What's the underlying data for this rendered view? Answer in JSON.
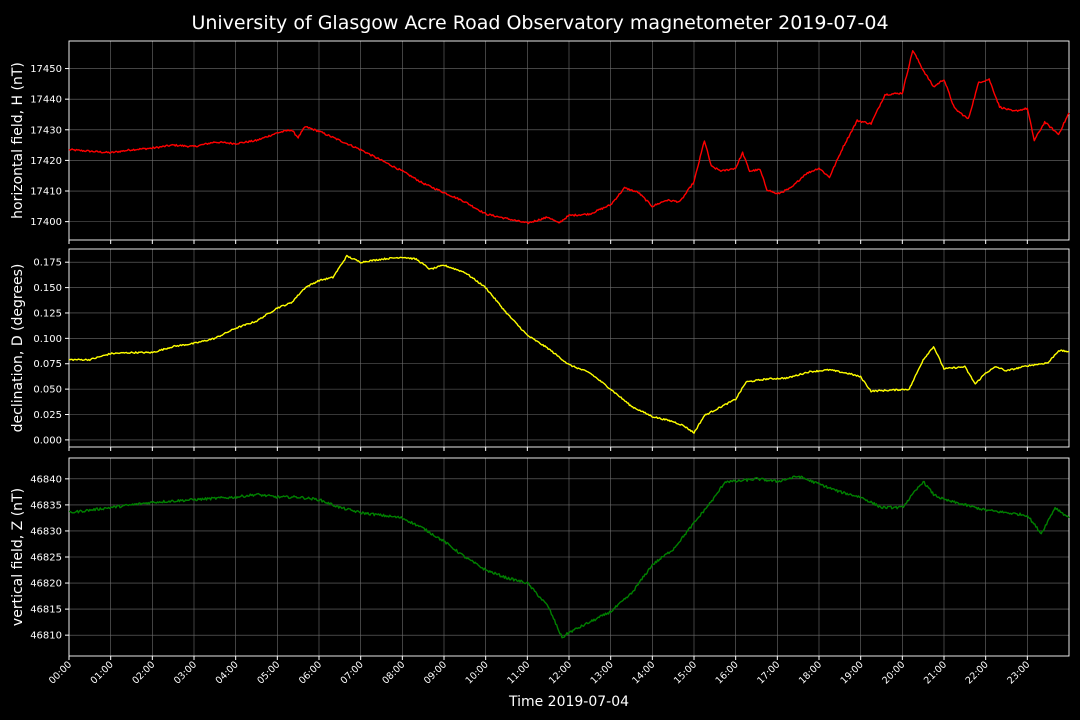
{
  "chart_data": {
    "type": "line",
    "title": "University of Glasgow Acre Road Observatory magnetometer 2019-07-04",
    "xlabel": "Time 2019-07-04",
    "x_ticks": [
      "00:00",
      "01:00",
      "02:00",
      "03:00",
      "04:00",
      "05:00",
      "06:00",
      "07:00",
      "08:00",
      "09:00",
      "10:00",
      "11:00",
      "12:00",
      "13:00",
      "14:00",
      "15:00",
      "16:00",
      "17:00",
      "18:00",
      "19:00",
      "20:00",
      "21:00",
      "22:00",
      "23:00"
    ],
    "xlim": [
      "00:00",
      "24:00"
    ],
    "grid": true,
    "panels": [
      {
        "ylabel": "horizontal field, H (nT)",
        "color": "#ff0000",
        "ylim": [
          17394,
          17459
        ],
        "yticks": [
          17400,
          17410,
          17420,
          17430,
          17440,
          17450
        ],
        "noise": 0.6,
        "points": [
          [
            "00:00",
            17423.5
          ],
          [
            "00:30",
            17423.0
          ],
          [
            "01:00",
            17422.5
          ],
          [
            "01:30",
            17423.5
          ],
          [
            "02:00",
            17424.0
          ],
          [
            "02:30",
            17425.0
          ],
          [
            "03:00",
            17424.5
          ],
          [
            "03:30",
            17426.0
          ],
          [
            "04:00",
            17425.5
          ],
          [
            "04:30",
            17426.5
          ],
          [
            "05:00",
            17429.0
          ],
          [
            "05:20",
            17430.0
          ],
          [
            "05:30",
            17427.5
          ],
          [
            "05:40",
            17431.0
          ],
          [
            "06:00",
            17429.5
          ],
          [
            "06:30",
            17426.5
          ],
          [
            "07:00",
            17423.5
          ],
          [
            "07:30",
            17420.0
          ],
          [
            "08:00",
            17416.5
          ],
          [
            "08:30",
            17412.5
          ],
          [
            "09:00",
            17409.5
          ],
          [
            "09:30",
            17406.5
          ],
          [
            "10:00",
            17402.5
          ],
          [
            "10:30",
            17401.0
          ],
          [
            "11:00",
            17399.5
          ],
          [
            "11:30",
            17401.5
          ],
          [
            "11:45",
            17399.5
          ],
          [
            "12:00",
            17402.0
          ],
          [
            "12:30",
            17402.5
          ],
          [
            "13:00",
            17405.5
          ],
          [
            "13:20",
            17411.0
          ],
          [
            "13:40",
            17409.5
          ],
          [
            "14:00",
            17405.0
          ],
          [
            "14:20",
            17407.0
          ],
          [
            "14:40",
            17406.5
          ],
          [
            "15:00",
            17413.0
          ],
          [
            "15:15",
            17426.5
          ],
          [
            "15:25",
            17418.0
          ],
          [
            "15:40",
            17416.5
          ],
          [
            "16:00",
            17417.5
          ],
          [
            "16:10",
            17422.5
          ],
          [
            "16:20",
            17416.5
          ],
          [
            "16:35",
            17417.0
          ],
          [
            "16:45",
            17410.5
          ],
          [
            "17:00",
            17409.0
          ],
          [
            "17:20",
            17411.0
          ],
          [
            "17:40",
            17415.5
          ],
          [
            "18:00",
            17417.5
          ],
          [
            "18:15",
            17414.5
          ],
          [
            "18:35",
            17424.5
          ],
          [
            "18:55",
            17433.0
          ],
          [
            "19:15",
            17432.0
          ],
          [
            "19:35",
            17441.5
          ],
          [
            "20:00",
            17442.0
          ],
          [
            "20:15",
            17456.0
          ],
          [
            "20:30",
            17449.5
          ],
          [
            "20:45",
            17444.0
          ],
          [
            "21:00",
            17446.5
          ],
          [
            "21:15",
            17437.0
          ],
          [
            "21:35",
            17433.5
          ],
          [
            "21:50",
            17445.5
          ],
          [
            "22:05",
            17446.5
          ],
          [
            "22:20",
            17437.5
          ],
          [
            "22:40",
            17436.0
          ],
          [
            "23:00",
            17437.0
          ],
          [
            "23:10",
            17426.5
          ],
          [
            "23:25",
            17432.5
          ],
          [
            "23:45",
            17428.5
          ],
          [
            "24:00",
            17435.5
          ]
        ]
      },
      {
        "ylabel": "declination, D (degrees)",
        "color": "#ffff00",
        "ylim": [
          -0.007,
          0.188
        ],
        "yticks": [
          0.0,
          0.025,
          0.05,
          0.075,
          0.1,
          0.125,
          0.15,
          0.175
        ],
        "noise": 0.0015,
        "points": [
          [
            "00:00",
            0.079
          ],
          [
            "00:30",
            0.079
          ],
          [
            "01:00",
            0.085
          ],
          [
            "01:30",
            0.086
          ],
          [
            "02:00",
            0.086
          ],
          [
            "02:30",
            0.092
          ],
          [
            "03:00",
            0.095
          ],
          [
            "03:30",
            0.1
          ],
          [
            "04:00",
            0.11
          ],
          [
            "04:30",
            0.117
          ],
          [
            "05:00",
            0.13
          ],
          [
            "05:20",
            0.135
          ],
          [
            "05:40",
            0.15
          ],
          [
            "06:00",
            0.157
          ],
          [
            "06:20",
            0.16
          ],
          [
            "06:40",
            0.181
          ],
          [
            "07:00",
            0.175
          ],
          [
            "07:30",
            0.178
          ],
          [
            "08:00",
            0.18
          ],
          [
            "08:20",
            0.178
          ],
          [
            "08:40",
            0.168
          ],
          [
            "09:00",
            0.172
          ],
          [
            "09:30",
            0.165
          ],
          [
            "10:00",
            0.15
          ],
          [
            "10:30",
            0.125
          ],
          [
            "11:00",
            0.103
          ],
          [
            "11:30",
            0.09
          ],
          [
            "12:00",
            0.074
          ],
          [
            "12:30",
            0.066
          ],
          [
            "13:00",
            0.05
          ],
          [
            "13:30",
            0.033
          ],
          [
            "14:00",
            0.023
          ],
          [
            "14:30",
            0.018
          ],
          [
            "14:45",
            0.014
          ],
          [
            "15:00",
            0.007
          ],
          [
            "15:15",
            0.024
          ],
          [
            "15:40",
            0.033
          ],
          [
            "16:00",
            0.04
          ],
          [
            "16:15",
            0.057
          ],
          [
            "16:45",
            0.06
          ],
          [
            "17:15",
            0.061
          ],
          [
            "17:45",
            0.067
          ],
          [
            "18:15",
            0.069
          ],
          [
            "18:45",
            0.065
          ],
          [
            "19:00",
            0.062
          ],
          [
            "19:15",
            0.048
          ],
          [
            "19:45",
            0.049
          ],
          [
            "20:10",
            0.05
          ],
          [
            "20:30",
            0.079
          ],
          [
            "20:45",
            0.092
          ],
          [
            "21:00",
            0.07
          ],
          [
            "21:15",
            0.071
          ],
          [
            "21:30",
            0.072
          ],
          [
            "21:45",
            0.055
          ],
          [
            "22:00",
            0.066
          ],
          [
            "22:15",
            0.072
          ],
          [
            "22:30",
            0.068
          ],
          [
            "23:00",
            0.073
          ],
          [
            "23:30",
            0.076
          ],
          [
            "23:45",
            0.088
          ],
          [
            "24:00",
            0.087
          ]
        ]
      },
      {
        "ylabel": "vertical field, Z (nT)",
        "color": "#008000",
        "ylim": [
          46806,
          46844
        ],
        "yticks": [
          46810,
          46815,
          46820,
          46825,
          46830,
          46835,
          46840
        ],
        "noise": 0.5,
        "points": [
          [
            "00:00",
            46833.5
          ],
          [
            "01:00",
            46834.5
          ],
          [
            "02:00",
            46835.5
          ],
          [
            "03:00",
            46836.0
          ],
          [
            "04:00",
            46836.5
          ],
          [
            "04:30",
            46837.0
          ],
          [
            "05:00",
            46836.5
          ],
          [
            "05:30",
            46836.5
          ],
          [
            "06:00",
            46836.0
          ],
          [
            "06:30",
            46834.5
          ],
          [
            "07:00",
            46833.5
          ],
          [
            "07:30",
            46833.0
          ],
          [
            "08:00",
            46832.5
          ],
          [
            "08:30",
            46830.5
          ],
          [
            "09:00",
            46828.0
          ],
          [
            "09:30",
            46825.0
          ],
          [
            "10:00",
            46822.5
          ],
          [
            "10:30",
            46821.0
          ],
          [
            "11:00",
            46820.0
          ],
          [
            "11:30",
            46815.5
          ],
          [
            "11:50",
            46809.5
          ],
          [
            "12:00",
            46810.5
          ],
          [
            "12:30",
            46812.5
          ],
          [
            "13:00",
            46814.5
          ],
          [
            "13:30",
            46818.0
          ],
          [
            "14:00",
            46823.5
          ],
          [
            "14:30",
            46826.5
          ],
          [
            "15:00",
            46831.5
          ],
          [
            "15:30",
            46836.5
          ],
          [
            "15:45",
            46839.5
          ],
          [
            "16:00",
            46839.5
          ],
          [
            "16:30",
            46840.0
          ],
          [
            "17:00",
            46839.5
          ],
          [
            "17:30",
            46840.5
          ],
          [
            "18:00",
            46839.0
          ],
          [
            "18:30",
            46837.5
          ],
          [
            "19:00",
            46836.5
          ],
          [
            "19:30",
            46834.5
          ],
          [
            "20:00",
            46834.5
          ],
          [
            "20:30",
            46839.5
          ],
          [
            "20:45",
            46837.0
          ],
          [
            "21:00",
            46836.0
          ],
          [
            "21:30",
            46835.0
          ],
          [
            "22:00",
            46834.0
          ],
          [
            "22:30",
            46833.5
          ],
          [
            "23:00",
            46833.0
          ],
          [
            "23:20",
            46829.5
          ],
          [
            "23:40",
            46834.5
          ],
          [
            "24:00",
            46832.5
          ]
        ]
      }
    ]
  }
}
